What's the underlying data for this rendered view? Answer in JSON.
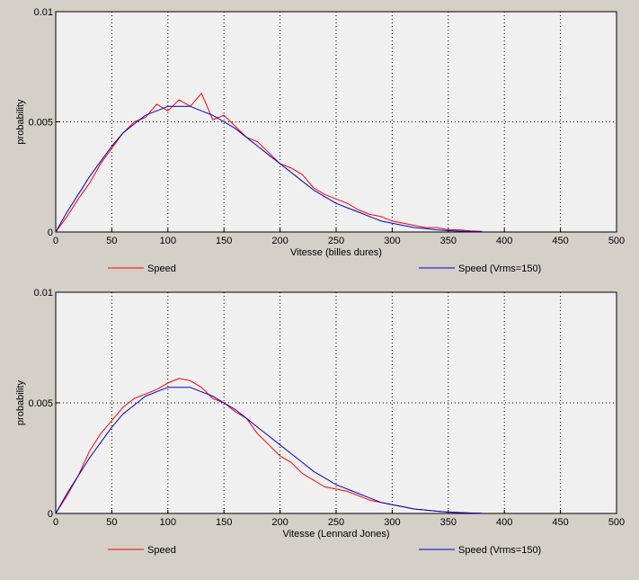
{
  "colors": {
    "window_bg": "#d4d0c8",
    "plot_bg": "#f0f0f0",
    "measured": "#ff0000",
    "theory": "#0000cc",
    "grid": "#000000"
  },
  "chart_data": [
    {
      "type": "line",
      "xlabel": "Vitesse (billes dures)",
      "ylabel": "probability",
      "xlim": [
        0,
        500
      ],
      "ylim": [
        0,
        0.01
      ],
      "x_ticks": [
        "0",
        "50",
        "100",
        "150",
        "200",
        "250",
        "300",
        "350",
        "400",
        "450",
        "500"
      ],
      "y_ticks": [
        "0",
        "0.005",
        "0.01"
      ],
      "grid": true,
      "legend": [
        "Speed",
        "Speed (Vrms=150)"
      ],
      "series": [
        {
          "name": "Speed",
          "color": "#ff0000",
          "x": [
            0,
            10,
            20,
            30,
            40,
            50,
            60,
            70,
            80,
            90,
            100,
            110,
            120,
            130,
            140,
            150,
            160,
            170,
            180,
            190,
            200,
            210,
            220,
            230,
            240,
            250,
            260,
            270,
            280,
            290,
            300,
            310,
            320,
            330,
            340,
            350,
            360,
            370,
            380
          ],
          "y": [
            0,
            0.0007,
            0.0015,
            0.0022,
            0.0031,
            0.0038,
            0.0045,
            0.005,
            0.0052,
            0.0058,
            0.0055,
            0.006,
            0.0057,
            0.0063,
            0.0051,
            0.0053,
            0.0048,
            0.0043,
            0.0041,
            0.0036,
            0.0031,
            0.0029,
            0.0026,
            0.002,
            0.0017,
            0.0015,
            0.0013,
            0.001,
            0.0008,
            0.0007,
            0.0005,
            0.0004,
            0.0003,
            0.0002,
            0.0002,
            0.0001,
            0.0001,
            5e-05,
            3e-05
          ]
        },
        {
          "name": "Speed (Vrms=150)",
          "color": "#0000cc",
          "x": [
            0,
            10,
            20,
            30,
            40,
            50,
            60,
            70,
            80,
            90,
            100,
            110,
            120,
            130,
            140,
            150,
            160,
            170,
            180,
            190,
            200,
            210,
            220,
            230,
            240,
            250,
            260,
            270,
            280,
            290,
            300,
            310,
            320,
            330,
            340,
            350,
            360,
            370,
            380
          ],
          "y": [
            0,
            0.0009,
            0.0017,
            0.0025,
            0.0032,
            0.0039,
            0.0045,
            0.0049,
            0.0053,
            0.0055,
            0.0057,
            0.0057,
            0.0057,
            0.0055,
            0.0053,
            0.005,
            0.0047,
            0.0043,
            0.0039,
            0.0035,
            0.0031,
            0.0027,
            0.0023,
            0.0019,
            0.0016,
            0.0013,
            0.0011,
            0.0009,
            0.0007,
            0.0005,
            0.0004,
            0.0003,
            0.0002,
            0.00015,
            0.0001,
            6e-05,
            4e-05,
            2e-05,
            1e-05
          ]
        }
      ]
    },
    {
      "type": "line",
      "xlabel": "Vitesse (Lennard Jones)",
      "ylabel": "probability",
      "xlim": [
        0,
        500
      ],
      "ylim": [
        0,
        0.01
      ],
      "x_ticks": [
        "0",
        "50",
        "100",
        "150",
        "200",
        "250",
        "300",
        "350",
        "400",
        "450",
        "500"
      ],
      "y_ticks": [
        "0",
        "0.005",
        "0.01"
      ],
      "grid": true,
      "legend": [
        "Speed",
        "Speed (Vrms=150)"
      ],
      "series": [
        {
          "name": "Speed",
          "color": "#ff0000",
          "x": [
            0,
            10,
            20,
            30,
            40,
            50,
            60,
            70,
            80,
            90,
            100,
            110,
            120,
            130,
            140,
            150,
            160,
            170,
            180,
            190,
            200,
            210,
            220,
            230,
            240,
            250,
            260,
            270,
            280,
            290,
            300,
            310,
            320,
            330,
            340,
            350,
            360,
            370,
            380
          ],
          "y": [
            0,
            0.0008,
            0.0017,
            0.0028,
            0.0036,
            0.0042,
            0.0048,
            0.0052,
            0.0054,
            0.0056,
            0.0059,
            0.0061,
            0.006,
            0.0057,
            0.0052,
            0.005,
            0.0046,
            0.0043,
            0.0036,
            0.0031,
            0.0026,
            0.0023,
            0.0018,
            0.0015,
            0.0012,
            0.0011,
            0.001,
            0.0008,
            0.0006,
            0.0005,
            0.0004,
            0.0003,
            0.0002,
            0.00015,
            0.0001,
            6e-05,
            4e-05,
            2e-05,
            1e-05
          ]
        },
        {
          "name": "Speed (Vrms=150)",
          "color": "#0000cc",
          "x": [
            0,
            10,
            20,
            30,
            40,
            50,
            60,
            70,
            80,
            90,
            100,
            110,
            120,
            130,
            140,
            150,
            160,
            170,
            180,
            190,
            200,
            210,
            220,
            230,
            240,
            250,
            260,
            270,
            280,
            290,
            300,
            310,
            320,
            330,
            340,
            350,
            360,
            370,
            380
          ],
          "y": [
            0,
            0.0009,
            0.0017,
            0.0025,
            0.0032,
            0.0039,
            0.0045,
            0.0049,
            0.0053,
            0.0055,
            0.0057,
            0.0057,
            0.0057,
            0.0055,
            0.0053,
            0.005,
            0.0047,
            0.0043,
            0.0039,
            0.0035,
            0.0031,
            0.0027,
            0.0023,
            0.0019,
            0.0016,
            0.0013,
            0.0011,
            0.0009,
            0.0007,
            0.0005,
            0.0004,
            0.0003,
            0.0002,
            0.00015,
            0.0001,
            6e-05,
            4e-05,
            2e-05,
            1e-05
          ]
        }
      ]
    }
  ]
}
